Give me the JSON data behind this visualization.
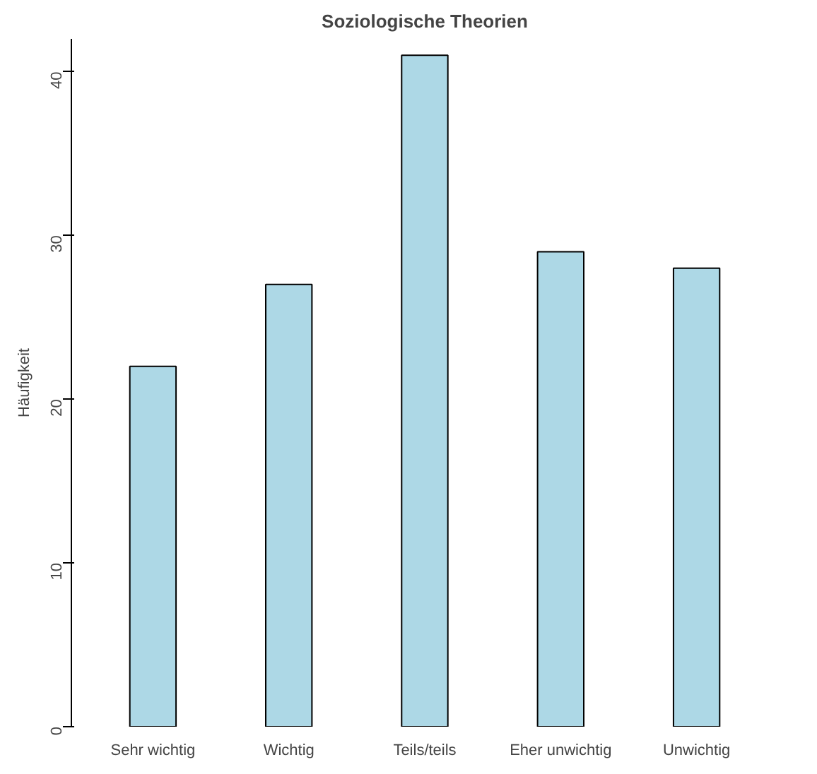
{
  "chart_data": {
    "type": "bar",
    "title": "Soziologische Theorien",
    "ylabel": "Häufigkeit",
    "categories": [
      "Sehr wichtig",
      "Wichtig",
      "Teils/teils",
      "Eher unwichtig",
      "Unwichtig"
    ],
    "values": [
      22,
      27,
      41,
      29,
      28
    ],
    "color": "#add8e6",
    "ylim": [
      0,
      42
    ],
    "yticks": [
      0,
      10,
      20,
      30,
      40
    ],
    "grid": false
  }
}
